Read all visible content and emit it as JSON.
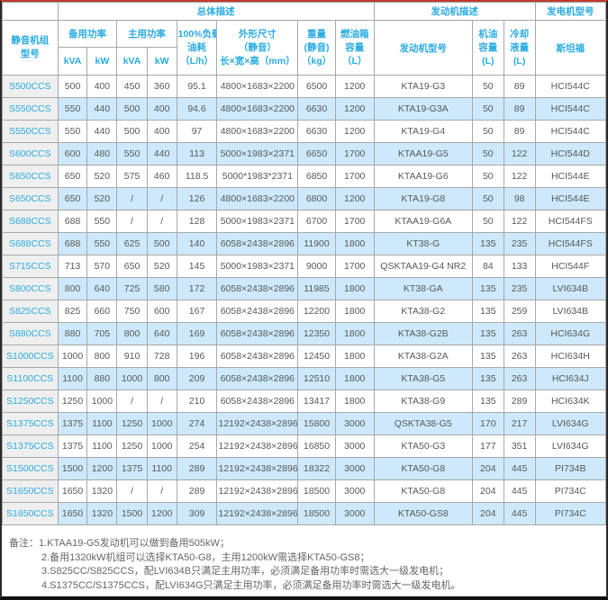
{
  "colors": {
    "accent_cyan": "#29abe2",
    "row_alt_blue": "#cde9fb",
    "model_col_gray": "#efefef",
    "cell_border": "#a8a8a8",
    "top_line_red": "#c0392b",
    "body_text": "#595959",
    "notes_text": "#666666"
  },
  "table": {
    "top_groups": {
      "overall": "总体描述",
      "engine": "发动机描述",
      "alternator": "发电机型号"
    },
    "headers": {
      "model": [
        "静音机组",
        "型号"
      ],
      "standby_power": "备用功率",
      "prime_power": "主用功率",
      "kva": "kVA",
      "kw": "kW",
      "fuel": [
        "100%负载",
        "油耗",
        "（L/h）"
      ],
      "dims": [
        "外形尺寸",
        "（静音）",
        "长×宽×高（mm）"
      ],
      "weight": [
        "重量",
        "(静音)",
        "（kg）"
      ],
      "tank": [
        "燃油箱",
        "容量",
        "（L）"
      ],
      "engine_model": "发动机型号",
      "oil": [
        "机油",
        "容量",
        "(L)"
      ],
      "coolant": [
        "冷却",
        "液量",
        "(L)"
      ],
      "stamford": "斯坦福"
    },
    "column_keys": [
      "model",
      "standby-kva",
      "standby-kw",
      "prime-kva",
      "prime-kw",
      "fuel-consumption",
      "dimensions",
      "weight",
      "tank-capacity",
      "engine-model",
      "oil-capacity",
      "coolant-capacity",
      "alternator-model"
    ],
    "column_widths_pct": [
      9.2,
      4.9,
      4.9,
      5.0,
      4.9,
      6.7,
      13.4,
      6.2,
      6.4,
      16.3,
      5.2,
      5.2,
      11.7
    ],
    "rows": [
      [
        "S500CCS",
        "500",
        "400",
        "450",
        "360",
        "95.1",
        "4800×1683×2200",
        "6500",
        "1200",
        "KTA19-G3",
        "50",
        "89",
        "HCI544C"
      ],
      [
        "S550CCS",
        "550",
        "440",
        "500",
        "400",
        "94.6",
        "4800×1683×2200",
        "6630",
        "1200",
        "KTA19-G3A",
        "50",
        "89",
        "HCI544C"
      ],
      [
        "S550CCS",
        "550",
        "440",
        "500",
        "400",
        "97",
        "4800×1683×2200",
        "6630",
        "1200",
        "KTA19-G4",
        "50",
        "89",
        "HCI544C"
      ],
      [
        "S600CCS",
        "600",
        "480",
        "550",
        "440",
        "113",
        "5000×1983×2371",
        "6650",
        "1700",
        "KTAA19-G5",
        "50",
        "122",
        "HCI544D"
      ],
      [
        "S650CCS",
        "650",
        "520",
        "575",
        "460",
        "118.5",
        "5000*1983*2371",
        "6850",
        "1700",
        "KTAA19-G6",
        "50",
        "122",
        "HCI544E"
      ],
      [
        "S650CCS",
        "650",
        "520",
        "/",
        "/",
        "126",
        "4800×1683×2200",
        "6800",
        "1200",
        "KTA19-G8",
        "50",
        "98",
        "HCI544E"
      ],
      [
        "S688CCS",
        "688",
        "550",
        "/",
        "/",
        "128",
        "5000×1983×2371",
        "6700",
        "1700",
        "KTAA19-G6A",
        "50",
        "122",
        "HCI544FS"
      ],
      [
        "S688CCS",
        "688",
        "550",
        "625",
        "500",
        "140",
        "6058×2438×2896",
        "11900",
        "1800",
        "KT38-G",
        "135",
        "235",
        "HCI544FS"
      ],
      [
        "S715CCS",
        "713",
        "570",
        "650",
        "520",
        "145",
        "5000×1983×2371",
        "9000",
        "1700",
        "QSKTAA19-G4 NR2",
        "84",
        "133",
        "HCI544F"
      ],
      [
        "S800CCS",
        "800",
        "640",
        "725",
        "580",
        "172",
        "6058×2438×2896",
        "11985",
        "1800",
        "KT38-GA",
        "135",
        "235",
        "LVI634B"
      ],
      [
        "S825CCS",
        "825",
        "660",
        "750",
        "600",
        "167",
        "6058×2438×2896",
        "12200",
        "1800",
        "KTA38-G2",
        "135",
        "259",
        "LVI634B"
      ],
      [
        "S880CCS",
        "880",
        "705",
        "800",
        "640",
        "169",
        "6058×2438×2896",
        "12350",
        "1800",
        "KTA38-G2B",
        "135",
        "263",
        "HCI634G"
      ],
      [
        "S1000CCS",
        "1000",
        "800",
        "910",
        "728",
        "196",
        "6058×2438×2896",
        "12450",
        "1800",
        "KTA38-G2A",
        "135",
        "263",
        "HCI634H"
      ],
      [
        "S1100CCS",
        "1100",
        "880",
        "1000",
        "800",
        "209",
        "6058×2438×2896",
        "12510",
        "1800",
        "KTA38-G5",
        "135",
        "263",
        "HCI634J"
      ],
      [
        "S1250CCS",
        "1250",
        "1000",
        "/",
        "/",
        "210",
        "6058×2438×2896",
        "13417",
        "1800",
        "KTA38-G9",
        "135",
        "289",
        "HCI634K"
      ],
      [
        "S1375CCS",
        "1375",
        "1100",
        "1250",
        "1000",
        "274",
        "12192×2438×2896",
        "15800",
        "3000",
        "QSKTA38-G5",
        "170",
        "217",
        "LVI634G"
      ],
      [
        "S1375CCS",
        "1375",
        "1100",
        "1250",
        "1000",
        "254",
        "12192×2438×2896",
        "16850",
        "3000",
        "KTA50-G3",
        "177",
        "351",
        "LVI634G"
      ],
      [
        "S1500CCS",
        "1500",
        "1200",
        "1375",
        "1100",
        "289",
        "12192×2438×2896",
        "18322",
        "3000",
        "KTA50-G8",
        "204",
        "445",
        "PI734B"
      ],
      [
        "S1650CCS",
        "1650",
        "1320",
        "/",
        "/",
        "289",
        "12192×2438×2896",
        "18500",
        "3000",
        "KTA50-G8",
        "204",
        "445",
        "PI734C"
      ],
      [
        "S1650CCS",
        "1650",
        "1320",
        "1500",
        "1200",
        "309",
        "12192×2438×2896",
        "18500",
        "3000",
        "KTA50-GS8",
        "204",
        "445",
        "PI734C"
      ]
    ]
  },
  "notes": {
    "label": "备注：",
    "items": [
      "1.KTAA19-G5发动机可以做到备用505kW；",
      "2.备用1320kW机组可以选择KTA50-G8，主用1200kW需选择KTA50-GS8；",
      "3.S825CC/S825CCS，配LVI634B只满足主用功率，必须满足备用功率时需选大一级发电机；",
      "4.S1375CC/S1375CCS，配LVI634G只满足主用功率，必须满足备用功率时需选大一级发电机。"
    ]
  }
}
